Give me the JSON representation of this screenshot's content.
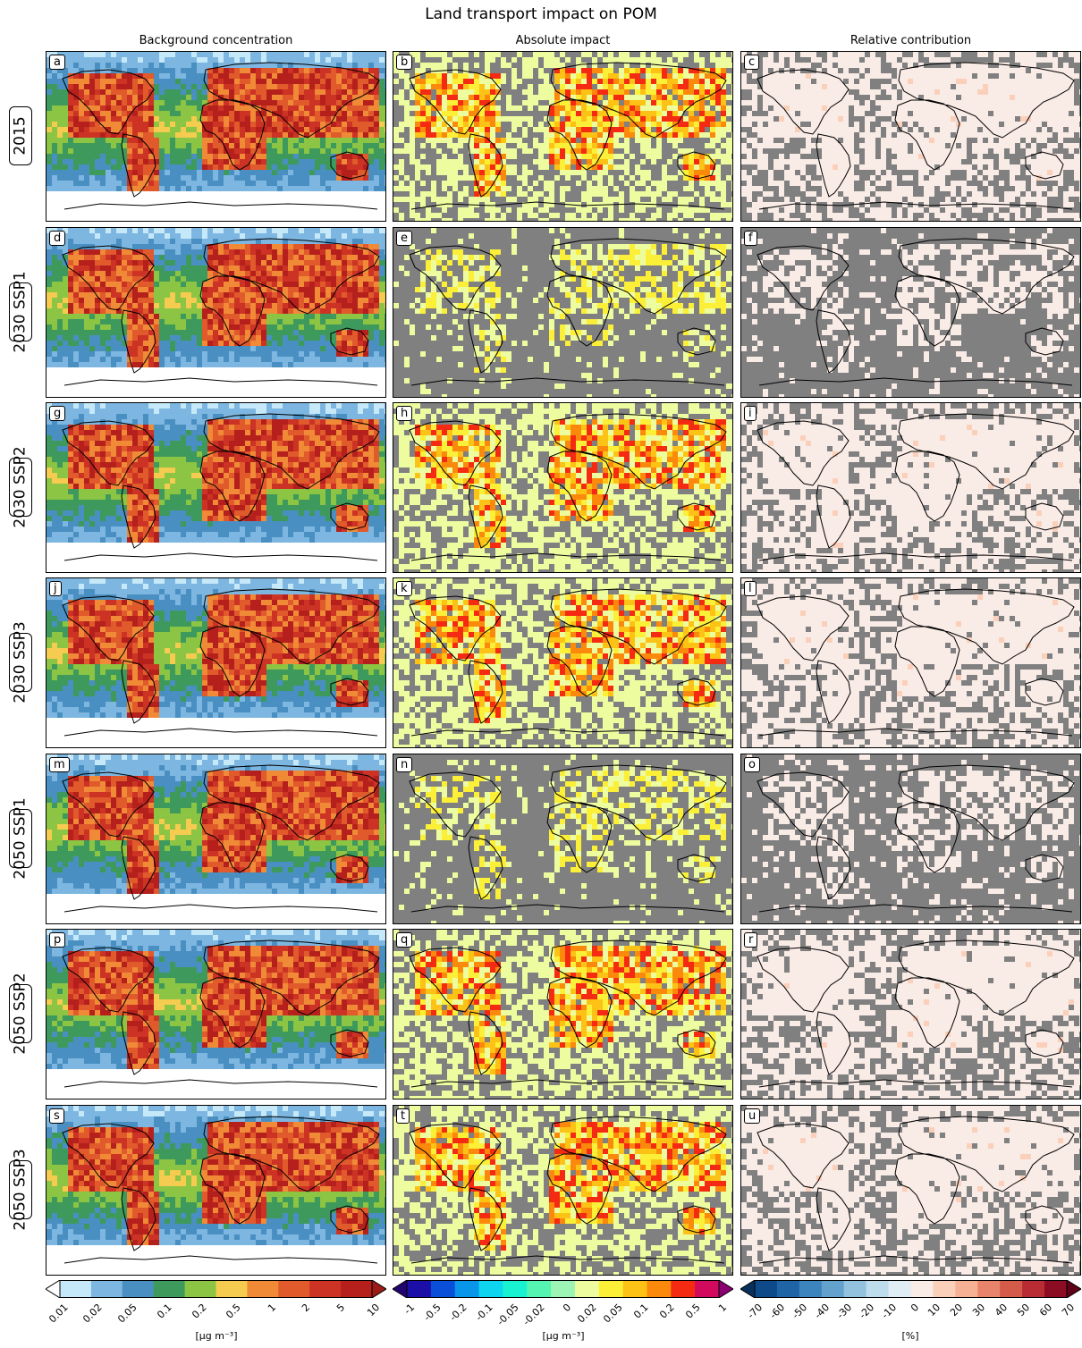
{
  "title": "Land transport impact on POM",
  "column_titles": [
    "Background concentration",
    "Absolute impact",
    "Relative contribution"
  ],
  "rows": [
    {
      "label": "2015",
      "panels": [
        "a",
        "b",
        "c"
      ]
    },
    {
      "label": "2030 SSP1",
      "panels": [
        "d",
        "e",
        "f"
      ]
    },
    {
      "label": "2030 SSP2",
      "panels": [
        "g",
        "h",
        "i"
      ]
    },
    {
      "label": "2030 SSP3",
      "panels": [
        "j",
        "k",
        "l"
      ]
    },
    {
      "label": "2050 SSP1",
      "panels": [
        "m",
        "n",
        "o"
      ]
    },
    {
      "label": "2050 SSP2",
      "panels": [
        "p",
        "q",
        "r"
      ]
    },
    {
      "label": "2050 SSP3",
      "panels": [
        "s",
        "t",
        "u"
      ]
    }
  ],
  "chart_data": [
    {
      "type": "heatmap",
      "name": "Background concentration",
      "colorbar": {
        "label": "[µg m⁻³]",
        "ticks": [
          "0.01",
          "0.02",
          "0.05",
          "0.1",
          "0.2",
          "0.5",
          "1",
          "2",
          "5",
          "10"
        ],
        "colors": [
          "#c6e9f9",
          "#7db7e1",
          "#4a8fc1",
          "#3e9a5c",
          "#8cc443",
          "#f5cb50",
          "#f08a37",
          "#e05a2b",
          "#cc3324",
          "#b5201c"
        ],
        "extend": "both",
        "under_color": "#ffffff",
        "over_color": "#9c1b18"
      }
    },
    {
      "type": "heatmap",
      "name": "Absolute impact",
      "colorbar": {
        "label": "[µg m⁻³]",
        "ticks": [
          "-1",
          "-0.5",
          "-0.2",
          "-0.1",
          "-0.05",
          "-0.02",
          "0",
          "0.02",
          "0.05",
          "0.1",
          "0.2",
          "0.5",
          "1"
        ],
        "colors": [
          "#1c0fa8",
          "#0a4fd8",
          "#0a96e8",
          "#0ed4ef",
          "#18f2d0",
          "#55f4b0",
          "#9cf5b4",
          "#eefca0",
          "#fbef38",
          "#fdc216",
          "#fb8a0c",
          "#f52a12",
          "#d20a5e"
        ],
        "extend": "both",
        "under_color": "#22046e",
        "over_color": "#8a0070",
        "masked_color": "#808080"
      }
    },
    {
      "type": "heatmap",
      "name": "Relative contribution",
      "colorbar": {
        "label": "[%]",
        "ticks": [
          "-70",
          "-60",
          "-50",
          "-40",
          "-30",
          "-20",
          "-10",
          "0",
          "10",
          "20",
          "30",
          "40",
          "50",
          "60",
          "70"
        ],
        "colors": [
          "#0e4a8a",
          "#1f65a6",
          "#3b84bd",
          "#63a2cd",
          "#93c2de",
          "#bddcec",
          "#e0edf4",
          "#f9ebe6",
          "#fbd0bb",
          "#f6b094",
          "#e9846c",
          "#d45a4a",
          "#b92c34",
          "#8c0c24"
        ],
        "extend": "both",
        "under_color": "#08305a",
        "over_color": "#5e0018",
        "masked_color": "#808080"
      }
    }
  ]
}
